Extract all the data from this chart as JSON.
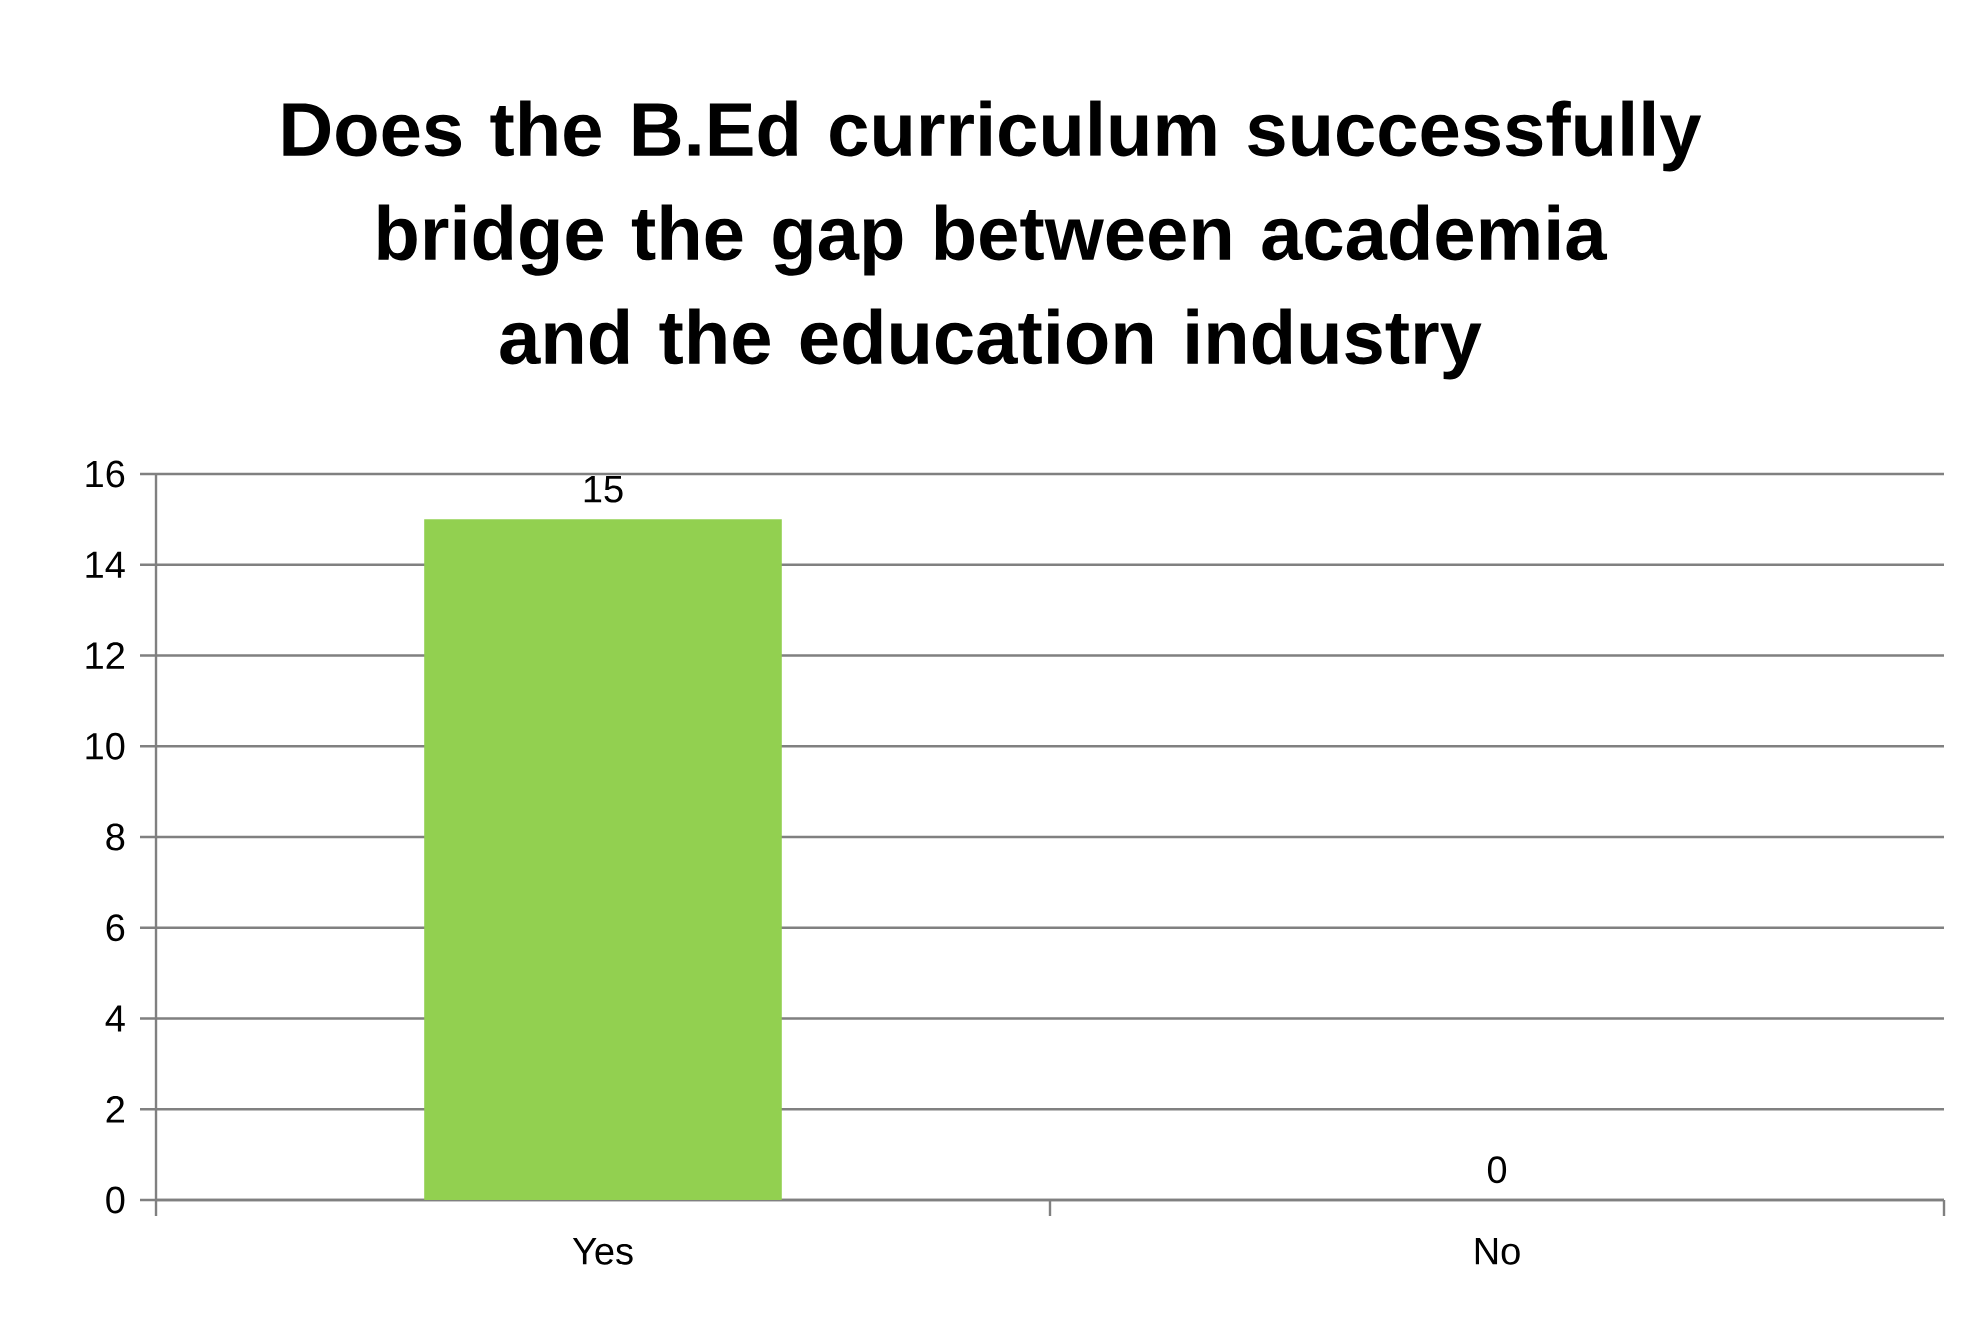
{
  "chart_data": {
    "type": "bar",
    "title": "Does the B.Ed curriculum successfully bridge the gap between academia and the education industry",
    "categories": [
      "Yes",
      "No"
    ],
    "values": [
      15,
      0
    ],
    "color": "#92d050",
    "ylim": [
      0,
      16
    ],
    "yticks": [
      0,
      2,
      4,
      6,
      8,
      10,
      12,
      14,
      16
    ],
    "grid": "y",
    "data_labels": true
  }
}
